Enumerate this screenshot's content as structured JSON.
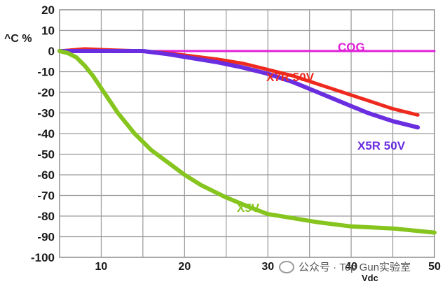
{
  "watermark": {
    "text": "公众号 · Top Gun实验室",
    "icon": "wechat-icon"
  },
  "chart_data": {
    "type": "line",
    "title": "",
    "xlabel": "Vdc",
    "ylabel": "^C %",
    "xlim": [
      5,
      50
    ],
    "ylim": [
      -100,
      20
    ],
    "grid": true,
    "x_ticks": [
      "10",
      "20",
      "30",
      "40",
      "50"
    ],
    "y_ticks": [
      "20",
      "10",
      "0",
      "-10",
      "-20",
      "-30",
      "-40",
      "-50",
      "-60",
      "-70",
      "-80",
      "-90",
      "-100"
    ],
    "series": [
      {
        "name": "COG",
        "color": "#e020d8",
        "x": [
          5,
          10,
          20,
          30,
          40,
          50
        ],
        "y": [
          0,
          0,
          0,
          0,
          0,
          0
        ]
      },
      {
        "name": "X7R  50V",
        "color": "#ee2a1e",
        "x": [
          5,
          8,
          11,
          15,
          18,
          21,
          24,
          27,
          30,
          33,
          36,
          39,
          42,
          45,
          48
        ],
        "y": [
          0,
          1,
          0.5,
          0,
          -1,
          -2.5,
          -4,
          -6,
          -9,
          -12,
          -16,
          -20,
          -24,
          -28,
          -31
        ]
      },
      {
        "name": "X5R 50V",
        "color": "#6a2ee0",
        "x": [
          5,
          8,
          11,
          15,
          18,
          21,
          24,
          27,
          30,
          33,
          36,
          39,
          42,
          45,
          48
        ],
        "y": [
          0,
          0,
          0,
          0,
          -1.5,
          -3.5,
          -5.5,
          -8,
          -11,
          -15,
          -20,
          -25,
          -30,
          -34,
          -37
        ]
      },
      {
        "name": "X5V",
        "color": "#86c41e",
        "x": [
          5,
          6,
          7,
          8,
          9,
          10,
          11,
          12,
          13,
          14,
          15,
          16,
          18,
          20,
          22,
          25,
          28,
          30,
          33,
          36,
          40,
          45,
          50
        ],
        "y": [
          0,
          -1,
          -3,
          -7,
          -12,
          -18,
          -24,
          -30,
          -35,
          -40,
          -44,
          -48,
          -54,
          -60,
          -65,
          -71,
          -76,
          -79,
          -81,
          -83,
          -85,
          -86,
          -88
        ]
      }
    ]
  }
}
